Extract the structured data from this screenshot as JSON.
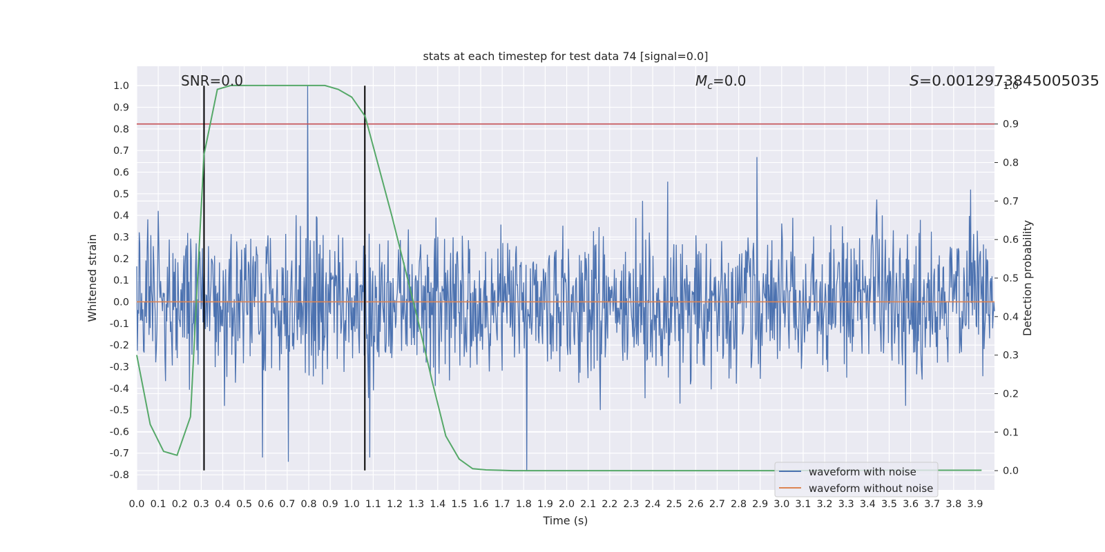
{
  "chart_data": {
    "type": "line",
    "title": "stats at each timestep for test data 74 [signal=0.0]",
    "xlabel": "Time (s)",
    "ylabel_left": "Whitened strain",
    "ylabel_right": "Detection probability",
    "annotations": {
      "snr": "SNR=0.0",
      "mc_symbol": "M",
      "mc_sub": "c",
      "mc_value": "=0.0",
      "s_symbol": "S",
      "s_value": "=0.0012973845005035",
      "s_full": "S=0.0012973845005035"
    },
    "xlim": [
      0.0,
      3.99
    ],
    "ylim_left": [
      -0.87,
      1.09
    ],
    "ylim_right": [
      -0.05,
      1.05
    ],
    "x_ticks": [
      0.0,
      0.1,
      0.2,
      0.3,
      0.4,
      0.5,
      0.6,
      0.7,
      0.8,
      0.9,
      1.0,
      1.1,
      1.2,
      1.3,
      1.4,
      1.5,
      1.6,
      1.7,
      1.8,
      1.9,
      2.0,
      2.1,
      2.2,
      2.3,
      2.4,
      2.5,
      2.6,
      2.7,
      2.8,
      2.9,
      3.0,
      3.1,
      3.2,
      3.3,
      3.4,
      3.5,
      3.6,
      3.7,
      3.8,
      3.9
    ],
    "y_ticks_left": [
      1.0,
      0.9,
      0.8,
      0.7,
      0.6,
      0.5,
      0.4,
      0.3,
      0.2,
      0.1,
      0.0,
      -0.1,
      -0.2,
      -0.3,
      -0.4,
      -0.5,
      -0.6,
      -0.7,
      -0.8
    ],
    "y_ticks_right": [
      1.0,
      0.9,
      0.8,
      0.7,
      0.6,
      0.5,
      0.4,
      0.3,
      0.2,
      0.1,
      0.0
    ],
    "grid": true,
    "legend_placement": "lower-right",
    "series": [
      {
        "name": "waveform with noise",
        "color": "#4c72b0",
        "axis": "left",
        "noise_band": [
          -0.45,
          0.45
        ],
        "notable_spikes": [
          [
            0.795,
            1.0
          ],
          [
            1.814,
            -0.78
          ],
          [
            0.585,
            -0.72
          ],
          [
            0.705,
            -0.74
          ],
          [
            2.885,
            0.67
          ]
        ]
      },
      {
        "name": "waveform without noise",
        "color": "#dd8452",
        "axis": "left",
        "x": [
          0.0,
          3.99
        ],
        "values": [
          0.0,
          0.0
        ]
      },
      {
        "color": "#55a868",
        "axis": "right",
        "x": [
          0.0,
          0.0625,
          0.125,
          0.1875,
          0.25,
          0.3125,
          0.375,
          0.4375,
          0.5,
          0.5625,
          0.625,
          0.6875,
          0.75,
          0.8125,
          0.875,
          0.9375,
          1.0,
          1.0625,
          1.125,
          1.1875,
          1.25,
          1.3125,
          1.375,
          1.4375,
          1.5,
          1.5625,
          1.625,
          1.6875,
          1.75,
          2.0,
          2.5,
          3.0,
          3.5,
          3.93
        ],
        "values": [
          0.3,
          0.12,
          0.05,
          0.04,
          0.14,
          0.82,
          0.99,
          1.0,
          1.0,
          1.0,
          1.0,
          1.0,
          1.0,
          1.0,
          1.0,
          0.99,
          0.97,
          0.92,
          0.79,
          0.66,
          0.52,
          0.38,
          0.23,
          0.09,
          0.03,
          0.005,
          0.002,
          0.001,
          0.0,
          0.0,
          0.0,
          0.0,
          0.001,
          0.001
        ]
      }
    ],
    "threshold_line": {
      "axis": "right",
      "value": 0.9,
      "color": "#c44e52"
    },
    "vertical_markers": {
      "x": [
        0.313,
        1.061
      ],
      "y_range_left": [
        -0.78,
        1.0
      ],
      "color": "#000000"
    }
  }
}
